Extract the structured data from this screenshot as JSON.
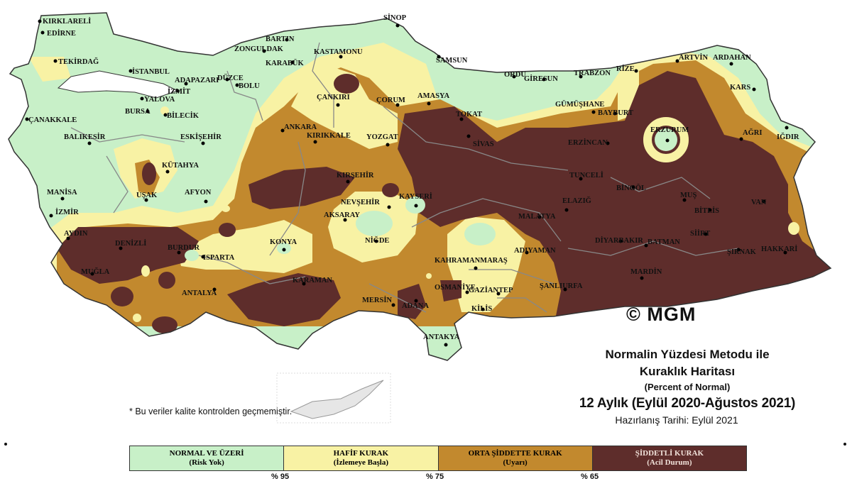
{
  "map": {
    "colors": {
      "normal": "#c8f0c8",
      "hafif": "#f8f2a4",
      "orta": "#c2892e",
      "siddetli": "#5e2d2b",
      "sea": "#ffffff",
      "border": "#888888"
    },
    "cities": [
      "KIRKLARELİ",
      "EDİRNE",
      "TEKİRDAĞ",
      "İSTANBUL",
      "ÇANAKKALE",
      "YALOVA",
      "BURSA",
      "BİLECİK",
      "ADAPAZARI",
      "İZMİT",
      "DÜZCE",
      "BOLU",
      "BARTIN",
      "ZONGULDAK",
      "KARABÜK",
      "KASTAMONU",
      "SİNOP",
      "SAMSUN",
      "ORDU",
      "GİRESUN",
      "TRABZON",
      "RİZE",
      "ARTVİN",
      "ARDAHAN",
      "KARS",
      "ÇANKIRI",
      "ÇORUM",
      "AMASYA",
      "TOKAT",
      "GÜMÜŞHANE",
      "BAYBURT",
      "ERZURUM",
      "AĞRI",
      "IĞDIR",
      "ANKARA",
      "KIRIKKALE",
      "YOZGAT",
      "SİVAS",
      "ERZİNCAN",
      "BALIKESİR",
      "ESKİŞEHİR",
      "KÜTAHYA",
      "TUNCELİ",
      "BİNGÖL",
      "MUŞ",
      "BİTLİS",
      "VAN",
      "MANİSA",
      "İZMİR",
      "UŞAK",
      "AFYON",
      "KIRŞEHİR",
      "NEVŞEHİR",
      "KAYSERİ",
      "ELAZIĞ",
      "MALATYA",
      "AKSARAY",
      "NİĞDE",
      "AYDIN",
      "DENİZLİ",
      "BURDUR",
      "ISPARTA",
      "KONYA",
      "ADIYAMAN",
      "DİYARBAKIR",
      "BATMAN",
      "SİİRT",
      "ŞIRNAK",
      "HAKKARİ",
      "MUĞLA",
      "KARAMAN",
      "KAHRAMANMARAŞ",
      "MARDİN",
      "ANTALYA",
      "OSMANİYE",
      "GAZİANTEP",
      "ŞANLIURFA",
      "MERSİN",
      "ADANA",
      "KİLİS",
      "ANTAKYA"
    ]
  },
  "watermark": "© MGM",
  "title": {
    "line1": "Normalin Yüzdesi Metodu ile",
    "line2": "Kuraklık Haritası",
    "line3": "(Percent of Normal)",
    "line4": "12 Aylık (Eylül 2020-Ağustos 2021)",
    "line5": "Hazırlanış Tarihi: Eylül 2021"
  },
  "note": "* Bu veriler kalite kontrolden geçmemiştir.",
  "legend": [
    {
      "label": "NORMAL VE ÜZERİ",
      "sub": "(Risk Yok)"
    },
    {
      "label": "HAFİF KURAK",
      "sub": "(İzlemeye Başla)"
    },
    {
      "label": "ORTA ŞİDDETTE KURAK",
      "sub": "(Uyarı)"
    },
    {
      "label": "ŞİDDETLİ KURAK",
      "sub": "(Acil Durum)"
    }
  ],
  "thresholds": [
    "% 95",
    "% 75",
    "% 65"
  ]
}
